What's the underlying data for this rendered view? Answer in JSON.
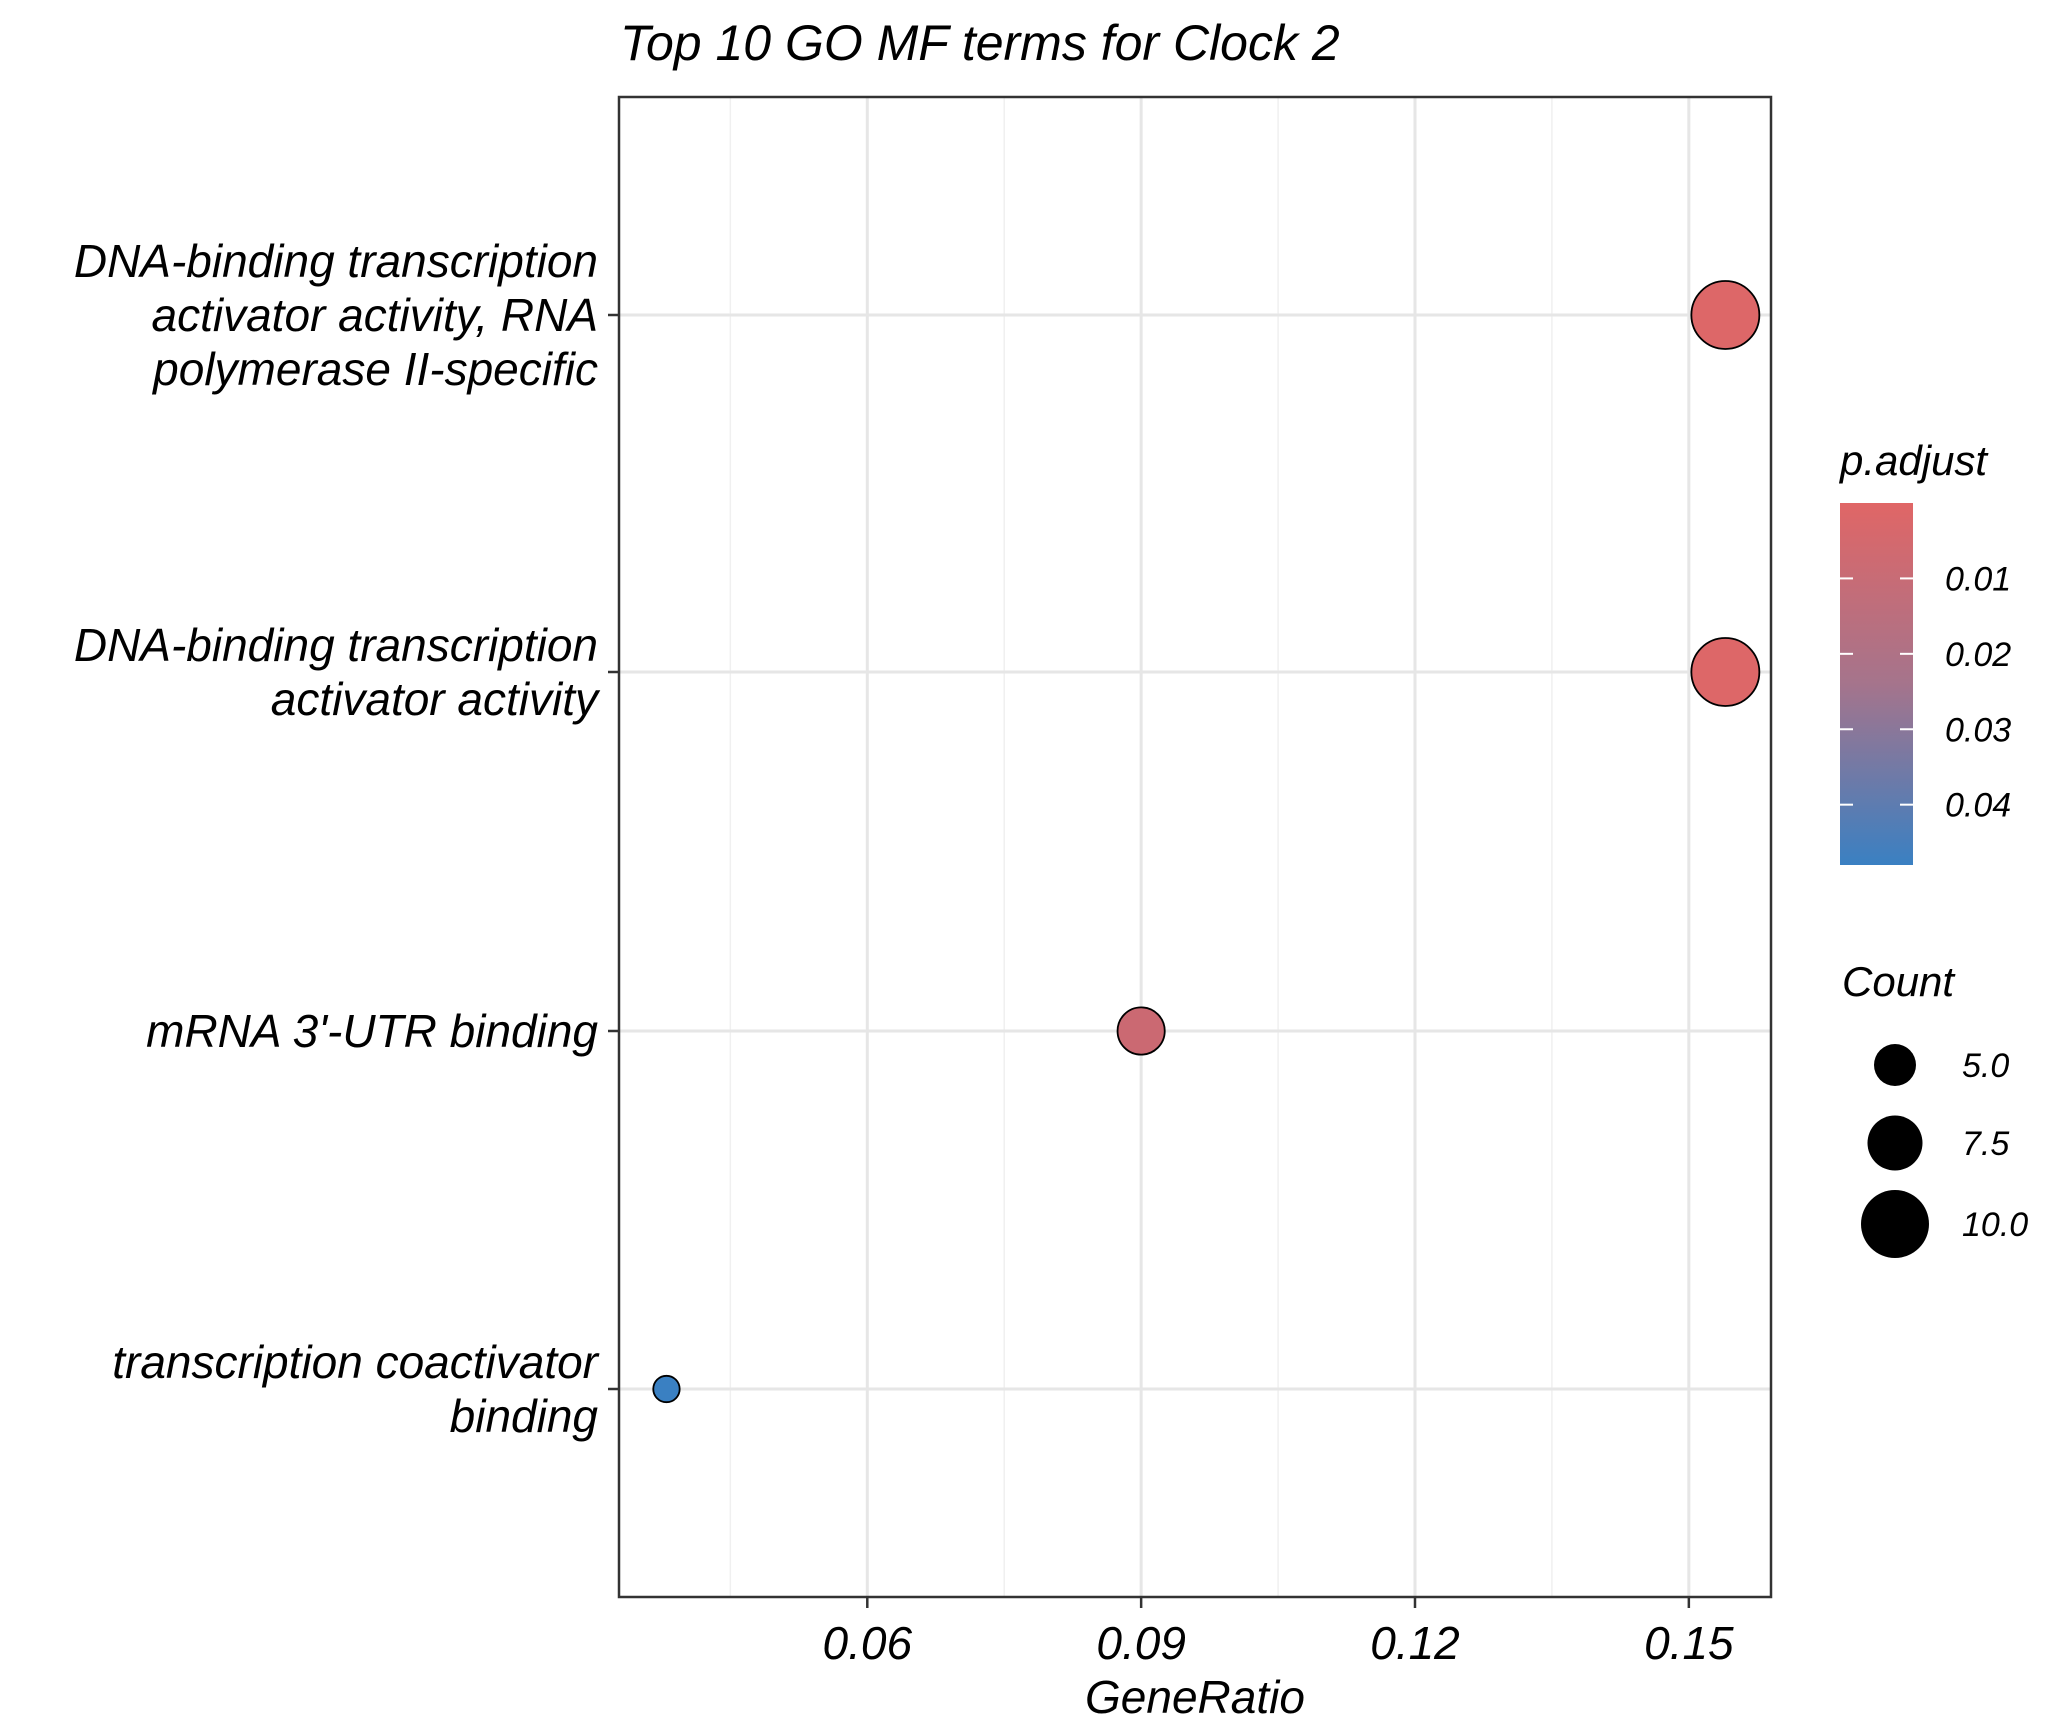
{
  "chart_data": {
    "type": "scatter",
    "title": "Top 10 GO MF terms for Clock 2",
    "xlabel": "GeneRatio",
    "xlim": [
      0.0328,
      0.159
    ],
    "xticks": [
      "0.06",
      "0.09",
      "0.12",
      "0.15"
    ],
    "xtick_values": [
      0.06,
      0.09,
      0.12,
      0.15
    ],
    "grid": true,
    "categories": [
      "DNA-binding transcription activator activity, RNA polymerase II-specific",
      "DNA-binding transcription activator activity",
      "mRNA 3'-UTR binding",
      "transcription coactivator binding"
    ],
    "category_lines": [
      [
        "DNA-binding transcription",
        "activator activity, RNA",
        "polymerase II-specific"
      ],
      [
        "DNA-binding transcription",
        "activator activity"
      ],
      [
        "mRNA 3'-UTR binding"
      ],
      [
        "transcription coactivator",
        "binding"
      ]
    ],
    "points": [
      {
        "term": "DNA-binding transcription activator activity, RNA polymerase II-specific",
        "gene_ratio": 0.154,
        "count": 10,
        "p_adjust": 0.001
      },
      {
        "term": "DNA-binding transcription activator activity",
        "gene_ratio": 0.154,
        "count": 10,
        "p_adjust": 0.001
      },
      {
        "term": "mRNA 3'-UTR binding",
        "gene_ratio": 0.09,
        "count": 6,
        "p_adjust": 0.006
      },
      {
        "term": "transcription coactivator binding",
        "gene_ratio": 0.038,
        "count": 2,
        "p_adjust": 0.048
      }
    ],
    "legend_color": {
      "title": "p.adjust",
      "ticks": [
        "0.01",
        "0.02",
        "0.03",
        "0.04"
      ],
      "tick_values": [
        0.01,
        0.02,
        0.03,
        0.04
      ],
      "range": [
        0.0,
        0.048
      ],
      "low_color": "#e06666",
      "high_color": "#3a80c2",
      "placement": "right"
    },
    "legend_size": {
      "title": "Count",
      "labels": [
        "5.0",
        "7.5",
        "10.0"
      ],
      "values": [
        5.0,
        7.5,
        10.0
      ],
      "placement": "right"
    }
  }
}
